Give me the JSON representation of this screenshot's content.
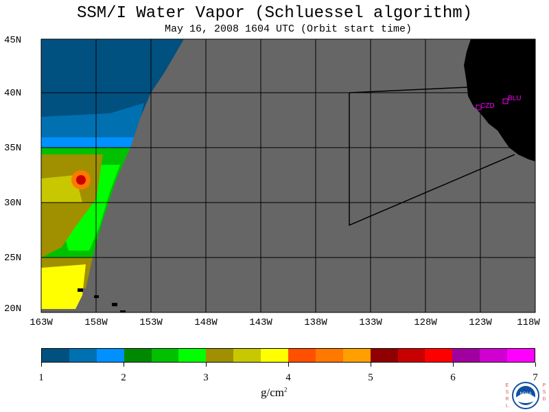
{
  "title": "SSM/I Water Vapor (Schluessel algorithm)",
  "subtitle": "May 16, 2008  1604 UTC  (Orbit start time)",
  "lat_labels": [
    "45N",
    "40N",
    "35N",
    "30N",
    "25N",
    "20N"
  ],
  "lon_labels": [
    "163W",
    "158W",
    "153W",
    "148W",
    "143W",
    "138W",
    "133W",
    "128W",
    "123W",
    "118W"
  ],
  "stations": [
    "CZD",
    "BLU"
  ],
  "colorbar": {
    "colors": [
      "#005080",
      "#0070b0",
      "#0090ff",
      "#008800",
      "#00c000",
      "#00ff00",
      "#a09000",
      "#c8c800",
      "#ffff00",
      "#ff5000",
      "#ff7800",
      "#ffa000",
      "#900000",
      "#c80000",
      "#ff0000",
      "#a000a0",
      "#d000d0",
      "#ff00ff"
    ],
    "tick_labels": [
      "1",
      "2",
      "3",
      "4",
      "5",
      "6",
      "7"
    ],
    "units_main": "g/cm",
    "units_exp": "2"
  },
  "logo": {
    "left_text": "ESRL",
    "right_text": "PSD",
    "center_text": "NOAA"
  },
  "colors": {
    "no_data": "#666666",
    "land": "#000000",
    "station": "#ff00ff"
  }
}
